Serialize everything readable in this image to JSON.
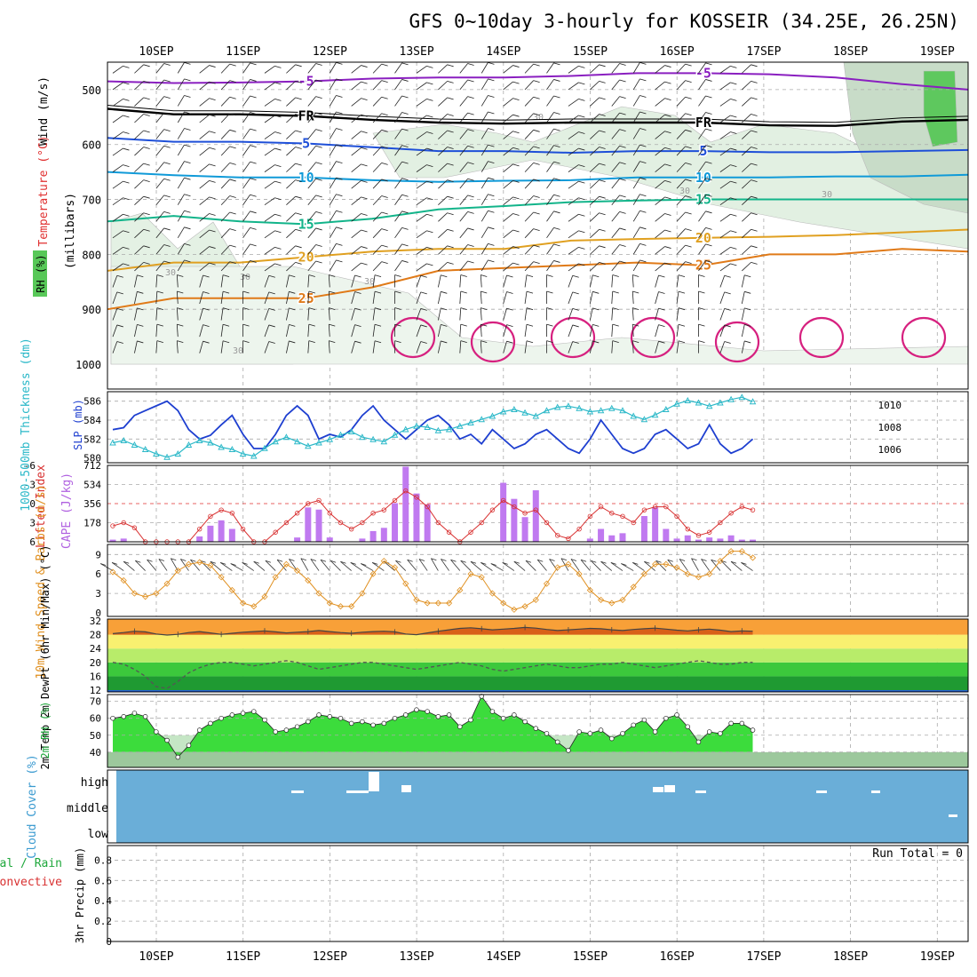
{
  "chart_data": {
    "type": "meteogram",
    "title": "GFS 0~10day 3-hourly for KOSSEIR (34.25E, 26.25N)",
    "dates": [
      "10SEP",
      "11SEP",
      "12SEP",
      "13SEP",
      "14SEP",
      "15SEP",
      "16SEP",
      "17SEP",
      "18SEP",
      "19SEP"
    ],
    "panels": {
      "upper_air": {
        "ylabel_rh": "RH (%)",
        "ylabel_temp": "Temperature (°C)",
        "ylabel_wind": "Wind (m/s)",
        "ylabel_units": "(millibars)",
        "yticks": [
          "500",
          "600",
          "700",
          "800",
          "900",
          "1000"
        ],
        "ylim": [
          450,
          1000
        ],
        "rh_label": "30",
        "isotherms": [
          {
            "label": "-5",
            "color": "#8a1fc0",
            "levels": [
              485,
              488,
              487,
              485,
              480,
              478,
              478,
              475,
              470,
              470,
              472,
              478,
              490,
              500
            ]
          },
          {
            "label": "FR",
            "color": "#000000",
            "levels": [
              535,
              545,
              545,
              548,
              555,
              560,
              562,
              560,
              560,
              560,
              565,
              566,
              558,
              555
            ]
          },
          {
            "label": "5",
            "color": "#1e4fd8",
            "levels": [
              588,
              595,
              595,
              598,
              605,
              612,
              612,
              615,
              612,
              612,
              614,
              614,
              612,
              610
            ]
          },
          {
            "label": "10",
            "color": "#109ad8",
            "levels": [
              650,
              656,
              660,
              660,
              665,
              668,
              666,
              665,
              660,
              660,
              660,
              658,
              658,
              655
            ]
          },
          {
            "label": "15",
            "color": "#12b48a",
            "levels": [
              740,
              730,
              740,
              745,
              735,
              718,
              712,
              705,
              702,
              700,
              700,
              700,
              700,
              700
            ]
          },
          {
            "label": "20",
            "color": "#e0a020",
            "levels": [
              830,
              815,
              815,
              805,
              795,
              790,
              790,
              775,
              772,
              770,
              768,
              765,
              760,
              755
            ]
          },
          {
            "label": "25",
            "color": "#e07a18",
            "levels": [
              900,
              880,
              880,
              880,
              860,
              830,
              825,
              820,
              815,
              820,
              800,
              800,
              790,
              795
            ]
          }
        ]
      },
      "thickness_slp": {
        "ylabel_thk": "1000-500mb Thickness (dm)",
        "ylabel_slp": "SLP (mb)",
        "yticks_left": [
          "580",
          "582",
          "584",
          "586"
        ],
        "yticks_right": [
          "1006",
          "1008",
          "1010"
        ],
        "thickness": [
          583.0,
          583.2,
          584.5,
          585.0,
          585.5,
          586.0,
          585.0,
          583.0,
          582.0,
          582.4,
          583.5,
          584.5,
          582.5,
          581.0,
          581.0,
          582.5,
          584.5,
          585.5,
          584.5,
          582.0,
          582.5,
          582.2,
          583.0,
          584.5,
          585.5,
          584.0,
          583.0,
          582.0,
          583.0,
          584.0,
          584.5,
          583.5,
          582.0,
          582.5,
          581.5,
          583.0,
          582.0,
          581.0,
          581.5,
          582.5,
          583.0,
          582.0,
          581.0,
          580.5,
          582.0,
          584.0,
          582.5,
          581.0,
          580.5,
          581.0,
          582.5,
          583.0,
          582.0,
          581.0,
          581.5,
          583.5,
          581.5,
          580.5,
          581.0,
          582.0
        ],
        "slp": [
          1006.6,
          1006.8,
          1006.4,
          1006.0,
          1005.6,
          1005.3,
          1005.6,
          1006.4,
          1006.8,
          1006.6,
          1006.2,
          1006.0,
          1005.6,
          1005.4,
          1006.1,
          1006.7,
          1007.1,
          1006.7,
          1006.3,
          1006.6,
          1006.9,
          1007.3,
          1007.6,
          1007.1,
          1006.9,
          1006.7,
          1007.3,
          1007.8,
          1008.1,
          1008.0,
          1007.7,
          1007.8,
          1008.1,
          1008.4,
          1008.7,
          1009.0,
          1009.4,
          1009.6,
          1009.3,
          1009.0,
          1009.5,
          1009.8,
          1009.9,
          1009.7,
          1009.4,
          1009.5,
          1009.7,
          1009.5,
          1009.0,
          1008.7,
          1009.1,
          1009.6,
          1010.1,
          1010.4,
          1010.2,
          1009.9,
          1010.2,
          1010.5,
          1010.7,
          1010.3
        ]
      },
      "instability": {
        "ylabel_li": "Lifted Index",
        "ylabel_cape": "CAPE (J/kg)",
        "yticks_li": [
          "-6",
          "-3",
          "0",
          "3",
          "6"
        ],
        "yticks_cape": [
          "178",
          "356",
          "534",
          "712"
        ],
        "cape": [
          20,
          30,
          0,
          0,
          0,
          0,
          0,
          0,
          50,
          150,
          200,
          120,
          0,
          0,
          0,
          0,
          0,
          40,
          320,
          300,
          40,
          0,
          0,
          30,
          100,
          130,
          360,
          700,
          450,
          350,
          0,
          0,
          0,
          0,
          0,
          0,
          550,
          400,
          230,
          480,
          0,
          0,
          0,
          0,
          30,
          120,
          60,
          80,
          0,
          240,
          320,
          120,
          30,
          60,
          20,
          40,
          30,
          60,
          20,
          20
        ],
        "lifted_index": [
          3.5,
          3.0,
          3.8,
          6.0,
          6.0,
          6.0,
          6.0,
          6.0,
          4.0,
          2.0,
          1.0,
          1.5,
          4.0,
          6.0,
          6.0,
          4.5,
          3.0,
          1.5,
          0.0,
          -0.5,
          1.5,
          3.0,
          4.0,
          3.0,
          1.5,
          1.0,
          -0.5,
          -2.0,
          -1.0,
          0.5,
          3.0,
          4.5,
          6.0,
          4.5,
          3.0,
          1.0,
          -0.5,
          0.5,
          1.5,
          1.0,
          3.0,
          5.0,
          5.5,
          4.0,
          2.0,
          0.5,
          1.5,
          2.0,
          3.0,
          1.0,
          0.5,
          0.5,
          2.0,
          4.0,
          5.0,
          4.5,
          3.0,
          1.5,
          0.5,
          1.0
        ]
      },
      "wind10m": {
        "ylabel": "10m Wind Speed & Barbs (m/s)",
        "yticks": [
          "0",
          "3",
          "6",
          "9"
        ],
        "speed": [
          6.3,
          5.0,
          3.0,
          2.5,
          3.0,
          4.5,
          6.5,
          7.5,
          7.8,
          7.3,
          5.5,
          3.5,
          1.5,
          1.0,
          2.5,
          5.5,
          7.5,
          6.5,
          5.0,
          3.0,
          1.5,
          1.0,
          1.0,
          3.0,
          6.0,
          8.0,
          7.0,
          4.5,
          2.0,
          1.5,
          1.5,
          1.5,
          3.5,
          6.0,
          5.5,
          3.0,
          1.5,
          0.5,
          1.0,
          2.0,
          4.5,
          7.0,
          7.5,
          6.0,
          3.5,
          2.0,
          1.5,
          2.0,
          4.0,
          6.0,
          7.5,
          7.5,
          7.0,
          6.0,
          5.5,
          6.0,
          8.0,
          9.5,
          9.5,
          8.5
        ],
        "direction": [
          330,
          335,
          340,
          345,
          350,
          355,
          0,
          355,
          350,
          345,
          340,
          335,
          330,
          335,
          340,
          345,
          350,
          355,
          0,
          355,
          350,
          345,
          340,
          335,
          330,
          335,
          340,
          345,
          350,
          355,
          0,
          355,
          350,
          345,
          340,
          335,
          330,
          335,
          340,
          345,
          350,
          355,
          0,
          355,
          350,
          345,
          340,
          335,
          330,
          335,
          340,
          345,
          350,
          355,
          0,
          355,
          350,
          345,
          340,
          335
        ]
      },
      "temp2m": {
        "ylabel": "2m Temp 2m DewPt (6hr Min/Max) (°C)",
        "yticks": [
          "12",
          "16",
          "20",
          "24",
          "28",
          "32"
        ],
        "temp": [
          28.3,
          28.6,
          29.0,
          28.8,
          28.2,
          27.9,
          28.1,
          28.6,
          28.9,
          28.5,
          28.1,
          28.4,
          28.7,
          28.9,
          29.1,
          28.8,
          28.5,
          28.7,
          28.9,
          29.2,
          28.9,
          28.6,
          28.4,
          28.7,
          28.9,
          29.0,
          28.8,
          28.2,
          28.0,
          28.5,
          29.0,
          29.4,
          29.8,
          30.0,
          29.7,
          29.4,
          29.6,
          29.8,
          30.1,
          29.9,
          29.5,
          29.2,
          29.4,
          29.6,
          29.8,
          29.7,
          29.4,
          29.2,
          29.5,
          29.7,
          29.9,
          29.6,
          29.3,
          29.1,
          29.4,
          29.6,
          29.3,
          28.9,
          29.1,
          29.0
        ],
        "dewpoint": [
          20.0,
          19.5,
          18.0,
          16.0,
          13.0,
          12.5,
          14.5,
          17.0,
          18.5,
          19.5,
          20.0,
          20.0,
          19.5,
          19.0,
          19.5,
          20.0,
          20.5,
          20.0,
          19.0,
          18.0,
          18.5,
          19.0,
          19.5,
          20.0,
          20.0,
          19.5,
          19.0,
          18.5,
          18.0,
          18.5,
          19.0,
          19.5,
          20.0,
          19.5,
          19.0,
          18.0,
          17.5,
          18.0,
          18.5,
          19.0,
          19.5,
          19.0,
          18.5,
          18.5,
          19.0,
          19.5,
          19.5,
          20.0,
          19.5,
          19.0,
          18.5,
          19.0,
          19.5,
          20.0,
          20.5,
          20.0,
          19.5,
          19.5,
          20.0,
          20.0
        ]
      },
      "rh2m": {
        "ylabel": "2m RH (%)",
        "yticks": [
          "40",
          "50",
          "60",
          "70"
        ],
        "rh": [
          60,
          61,
          63,
          61,
          52,
          47,
          37,
          44,
          53,
          57,
          60,
          62,
          63,
          64,
          59,
          52,
          53,
          55,
          58,
          62,
          61,
          60,
          57,
          58,
          56,
          57,
          60,
          62,
          65,
          64,
          61,
          62,
          55,
          59,
          73,
          64,
          60,
          62,
          58,
          54,
          51,
          46,
          41,
          52,
          51,
          53,
          48,
          51,
          56,
          59,
          52,
          60,
          62,
          55,
          46,
          52,
          51,
          57,
          57,
          53
        ]
      },
      "cloud": {
        "ylabel": "Cloud Cover (%)",
        "yticks": [
          "high",
          "middle",
          "low"
        ]
      },
      "precip": {
        "ylabel_total": "Total / Rain",
        "ylabel_conv": "Convective",
        "ylabel": "3hr Precip (mm)",
        "yticks": [
          "0",
          "0.2",
          "0.4",
          "0.6",
          "0.8"
        ],
        "run_total": "Run Total = 0",
        "values": []
      }
    }
  }
}
